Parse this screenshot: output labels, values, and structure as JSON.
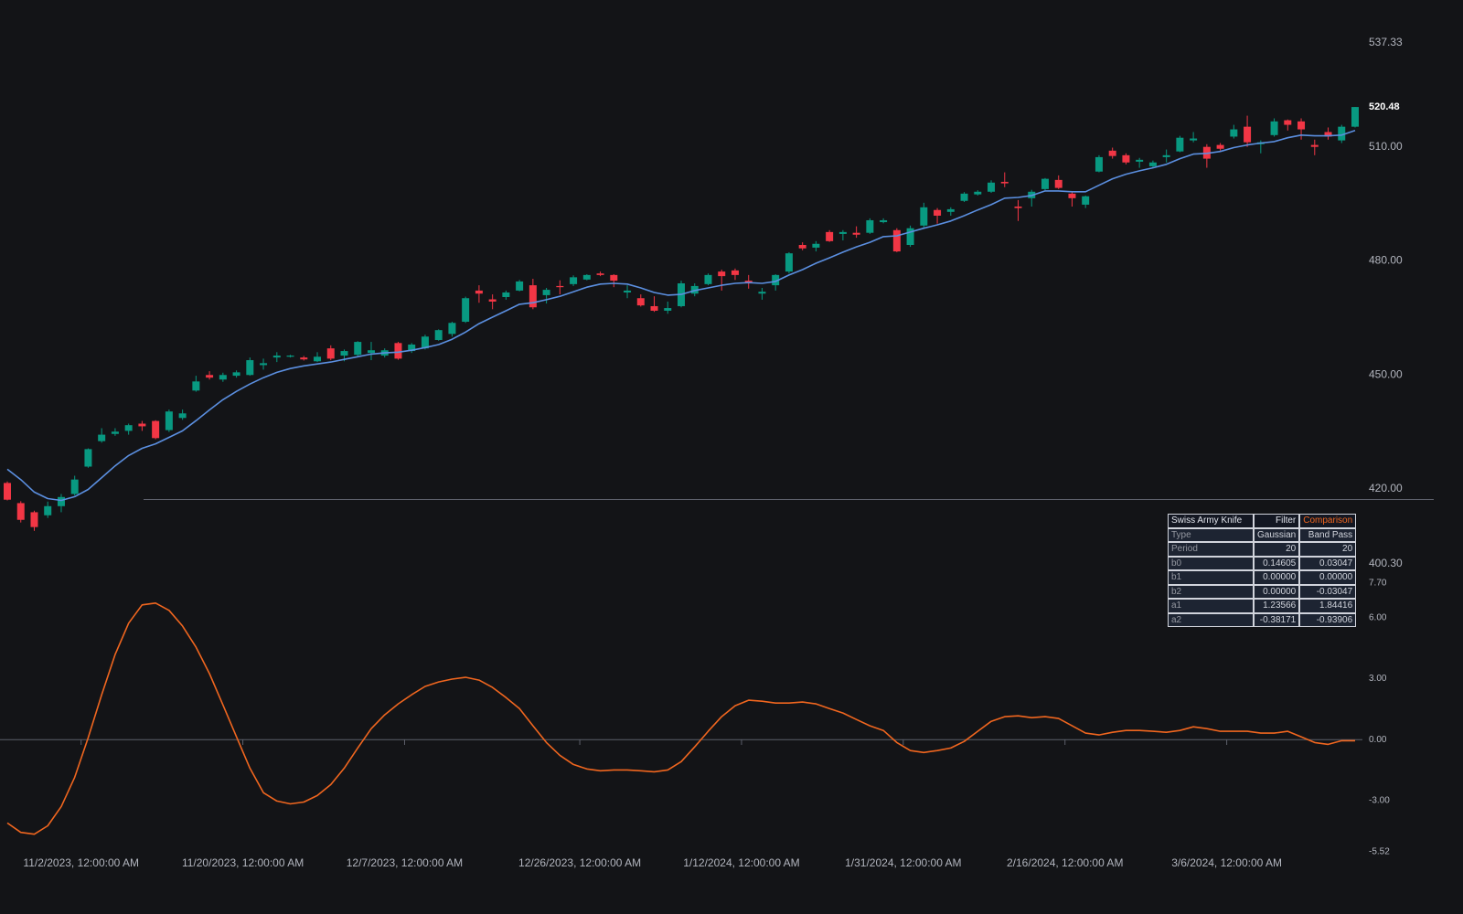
{
  "chart_data": [
    {
      "type": "candlestick",
      "categories": [
        null,
        null,
        null,
        null,
        null,
        "11/2/2023, 12:00:00 AM",
        null,
        null,
        null,
        null,
        null,
        null,
        null,
        null,
        null,
        null,
        null,
        "11/20/2023, 12:00:00 AM",
        null,
        null,
        null,
        null,
        null,
        null,
        null,
        null,
        null,
        null,
        null,
        "12/7/2023, 12:00:00 AM",
        null,
        null,
        null,
        null,
        null,
        null,
        null,
        null,
        null,
        null,
        null,
        null,
        "12/26/2023, 12:00:00 AM",
        null,
        null,
        null,
        null,
        null,
        null,
        null,
        null,
        null,
        null,
        null,
        "1/12/2024, 12:00:00 AM",
        null,
        null,
        null,
        null,
        null,
        null,
        null,
        null,
        null,
        null,
        null,
        "1/31/2024, 12:00:00 AM",
        null,
        null,
        null,
        null,
        null,
        null,
        null,
        null,
        null,
        null,
        null,
        "2/16/2024, 12:00:00 AM",
        null,
        null,
        null,
        null,
        null,
        null,
        null,
        null,
        null,
        null,
        null,
        "3/6/2024, 12:00:00 AM",
        null,
        null,
        null,
        null,
        null,
        null,
        null,
        null,
        null,
        null
      ],
      "open": [
        421.6,
        416.3,
        413.9,
        413.1,
        415.5,
        418.7,
        425.9,
        432.6,
        434.5,
        435.3,
        437.2,
        437.9,
        435.5,
        438.7,
        445.9,
        450.0,
        448.8,
        449.8,
        450.0,
        452.6,
        454.6,
        454.8,
        454.6,
        453.6,
        457.0,
        455.1,
        455.3,
        455.8,
        455.1,
        458.4,
        456.3,
        457.0,
        459.2,
        460.8,
        464.0,
        472.2,
        469.9,
        470.5,
        472.2,
        473.6,
        471.0,
        473.4,
        473.9,
        475.1,
        476.7,
        476.3,
        471.7,
        470.2,
        468.1,
        466.9,
        468.1,
        471.4,
        473.9,
        477.2,
        477.5,
        474.8,
        471.4,
        473.6,
        477.2,
        484.2,
        483.5,
        487.6,
        487.1,
        487.4,
        487.4,
        490.2,
        488.1,
        484.2,
        489.3,
        493.4,
        492.9,
        495.8,
        497.5,
        498.2,
        500.8,
        494.3,
        496.5,
        498.9,
        501.3,
        497.7,
        494.8,
        503.5,
        509.0,
        507.8,
        506.1,
        504.9,
        507.3,
        508.8,
        511.7,
        510.0,
        510.5,
        512.7,
        515.3,
        510.7,
        513.1,
        517.0,
        516.7,
        510.5,
        513.9,
        511.7,
        515.3
      ],
      "high": [
        422,
        416.8,
        414.3,
        416.7,
        418.7,
        423.5,
        430.7,
        436,
        436,
        437.2,
        437.9,
        438.1,
        440.9,
        440.9,
        449.8,
        451,
        450.6,
        451.2,
        454.6,
        454.3,
        456,
        455.3,
        455,
        456,
        457.8,
        456.7,
        458.9,
        458.7,
        457,
        458.7,
        458.4,
        460.6,
        462,
        464,
        470.6,
        473.6,
        471.2,
        472.2,
        475,
        475.3,
        472.9,
        474.9,
        476.2,
        476.5,
        477.2,
        476.5,
        473.6,
        471.2,
        470.7,
        469.3,
        474.8,
        474.1,
        476.7,
        477.7,
        478,
        476.3,
        472.9,
        476.5,
        482.3,
        484.9,
        485.2,
        488.1,
        488.1,
        489.1,
        491.2,
        491.2,
        488.6,
        489.3,
        495.3,
        493.9,
        494.1,
        498.1,
        498.6,
        501.2,
        503.3,
        496,
        498.7,
        501.8,
        502.5,
        498.2,
        497.2,
        507.8,
        509.8,
        508.3,
        507.1,
        506.4,
        509.3,
        512.9,
        513.9,
        510.7,
        511,
        515.8,
        518.2,
        511.7,
        517.5,
        517.2,
        517.5,
        511.9,
        515.1,
        515.8,
        520.5
      ],
      "low": [
        417,
        411.2,
        409,
        412.4,
        413.9,
        418.3,
        425.6,
        432.2,
        434,
        434.3,
        435.3,
        433.1,
        435,
        438.2,
        445.6,
        448.8,
        448.2,
        449.3,
        449.8,
        451.4,
        453.4,
        454.6,
        453.8,
        453.4,
        453.9,
        453.6,
        455,
        453.9,
        454.6,
        454,
        455.8,
        456.7,
        459,
        460.1,
        463.7,
        469,
        467.3,
        469.8,
        472,
        467.3,
        468.8,
        471.2,
        473.4,
        474.9,
        476,
        473.1,
        470.2,
        468,
        466.6,
        466.1,
        467.8,
        470.7,
        473.6,
        472.2,
        475,
        472.7,
        469.8,
        472.2,
        476.7,
        482.8,
        482.5,
        485,
        485.4,
        486.1,
        487.1,
        489.9,
        482.3,
        483.7,
        488.8,
        489.8,
        491.9,
        495.5,
        497.2,
        497.9,
        499.4,
        490.5,
        494.3,
        498.6,
        498.9,
        494.3,
        493.9,
        503.3,
        506.9,
        505.4,
        504.5,
        504.5,
        505.9,
        508.6,
        511.2,
        504.5,
        509,
        512.2,
        510,
        508.3,
        512.7,
        514.3,
        511.9,
        507.8,
        511.9,
        511,
        515.1
      ],
      "close": [
        417.2,
        411.9,
        410.0,
        415.5,
        417.9,
        422.5,
        430.5,
        434.3,
        435.1,
        436.8,
        436.5,
        433.4,
        440.4,
        439.9,
        448.3,
        449.3,
        450.0,
        450.7,
        453.9,
        453.1,
        455.1,
        455.1,
        454.1,
        454.8,
        454.3,
        456.3,
        458.7,
        456.5,
        456.5,
        454.3,
        458.0,
        460.1,
        461.8,
        463.7,
        470.2,
        471.4,
        469.3,
        471.7,
        474.6,
        467.8,
        472.4,
        473.1,
        475.7,
        476.3,
        476.3,
        474.8,
        472.2,
        468.3,
        466.9,
        467.6,
        474.1,
        473.4,
        476.3,
        476.0,
        476.3,
        474.3,
        471.9,
        476.3,
        482.0,
        483.3,
        484.5,
        485.2,
        487.6,
        486.9,
        490.7,
        490.7,
        482.5,
        488.6,
        494.1,
        491.9,
        493.6,
        497.7,
        498.2,
        500.6,
        500.4,
        493.9,
        498.2,
        501.6,
        499.2,
        496.5,
        497.0,
        507.3,
        507.6,
        505.9,
        506.6,
        505.9,
        507.8,
        512.4,
        512.2,
        506.9,
        509.5,
        514.6,
        511.2,
        511.2,
        516.7,
        515.8,
        514.6,
        510.0,
        512.7,
        515.3,
        520.48
      ],
      "up_color": "#089981",
      "down_color": "#f23645",
      "overlay": {
        "type": "line",
        "color": "#5b8fe0",
        "values": [
          425.2,
          422.5,
          419.2,
          417.5,
          417.0,
          418.0,
          419.9,
          423.0,
          426.1,
          428.8,
          430.7,
          431.9,
          433.6,
          435.3,
          438.0,
          440.8,
          443.5,
          445.7,
          447.6,
          449.3,
          450.7,
          451.7,
          452.4,
          452.9,
          453.4,
          454.1,
          454.8,
          455.5,
          455.8,
          456.0,
          456.5,
          457.2,
          458.0,
          459.4,
          461.3,
          463.5,
          465.2,
          466.9,
          468.6,
          469.0,
          469.8,
          470.7,
          471.9,
          473.1,
          473.9,
          474.1,
          473.9,
          472.9,
          471.7,
          471.0,
          471.2,
          472.2,
          472.9,
          473.6,
          474.1,
          474.3,
          474.1,
          474.6,
          476.3,
          477.7,
          479.4,
          480.8,
          482.3,
          483.7,
          484.9,
          486.4,
          486.6,
          487.6,
          488.6,
          489.5,
          490.5,
          491.9,
          493.4,
          494.8,
          496.5,
          496.7,
          497.2,
          498.4,
          498.4,
          498.2,
          498.2,
          499.9,
          501.6,
          502.8,
          503.7,
          504.5,
          505.4,
          506.9,
          508.1,
          508.3,
          508.8,
          509.8,
          510.5,
          511.0,
          511.4,
          512.4,
          513.1,
          512.9,
          512.9,
          513.1,
          514.3
        ]
      },
      "ylim": [
        400.3,
        537.33
      ],
      "yticks": [
        {
          "value": 400.3,
          "label": "400.30"
        },
        {
          "value": 420,
          "label": "420.00"
        },
        {
          "value": 450,
          "label": "450.00"
        },
        {
          "value": 480,
          "label": "480.00"
        },
        {
          "value": 510,
          "label": "510.00"
        },
        {
          "value": 537.33,
          "label": "537.33"
        }
      ],
      "last_price_label": "520.48"
    },
    {
      "type": "line",
      "color": "#f0661f",
      "values": [
        -4.1,
        -4.56,
        -4.65,
        -4.24,
        -3.29,
        -1.85,
        0.09,
        2.21,
        4.19,
        5.73,
        6.63,
        6.72,
        6.36,
        5.59,
        4.55,
        3.25,
        1.71,
        0.14,
        -1.4,
        -2.61,
        -3.02,
        -3.16,
        -3.07,
        -2.75,
        -2.21,
        -1.4,
        -0.41,
        0.54,
        1.22,
        1.76,
        2.21,
        2.62,
        2.84,
        2.98,
        3.07,
        2.93,
        2.57,
        2.07,
        1.53,
        0.68,
        -0.14,
        -0.77,
        -1.22,
        -1.44,
        -1.53,
        -1.49,
        -1.49,
        -1.53,
        -1.58,
        -1.49,
        -1.08,
        -0.36,
        0.41,
        1.13,
        1.67,
        1.94,
        1.89,
        1.8,
        1.8,
        1.85,
        1.76,
        1.53,
        1.31,
        0.99,
        0.68,
        0.45,
        -0.14,
        -0.54,
        -0.63,
        -0.54,
        -0.41,
        -0.09,
        0.41,
        0.9,
        1.13,
        1.17,
        1.08,
        1.13,
        1.04,
        0.68,
        0.32,
        0.23,
        0.36,
        0.45,
        0.45,
        0.41,
        0.36,
        0.45,
        0.63,
        0.54,
        0.41,
        0.41,
        0.41,
        0.32,
        0.32,
        0.41,
        0.14,
        -0.14,
        -0.23,
        -0.05,
        -0.05
      ],
      "ylim": [
        -5.52,
        7.7
      ],
      "yticks": [
        {
          "value": -5.52,
          "label": "-5.52"
        },
        {
          "value": -3,
          "label": "-3.00"
        },
        {
          "value": 0,
          "label": "0.00"
        },
        {
          "value": 3,
          "label": "3.00"
        },
        {
          "value": 6,
          "label": "6.00"
        },
        {
          "value": 7.7,
          "label": "7.70"
        }
      ],
      "zero_line": true
    }
  ],
  "table": {
    "header": [
      "Swiss Army Knife",
      "Filter",
      "Comparison"
    ],
    "rows": [
      [
        "Type",
        "Gaussian",
        "Band Pass"
      ],
      [
        "Period",
        "20",
        "20"
      ],
      [
        "b0",
        "0.14605",
        "0.03047"
      ],
      [
        "b1",
        "0.00000",
        "0.00000"
      ],
      [
        "b2",
        "0.00000",
        "-0.03047"
      ],
      [
        "a1",
        "1.23566",
        "1.84416"
      ],
      [
        "a2",
        "-0.38171",
        "-0.93906"
      ]
    ]
  }
}
